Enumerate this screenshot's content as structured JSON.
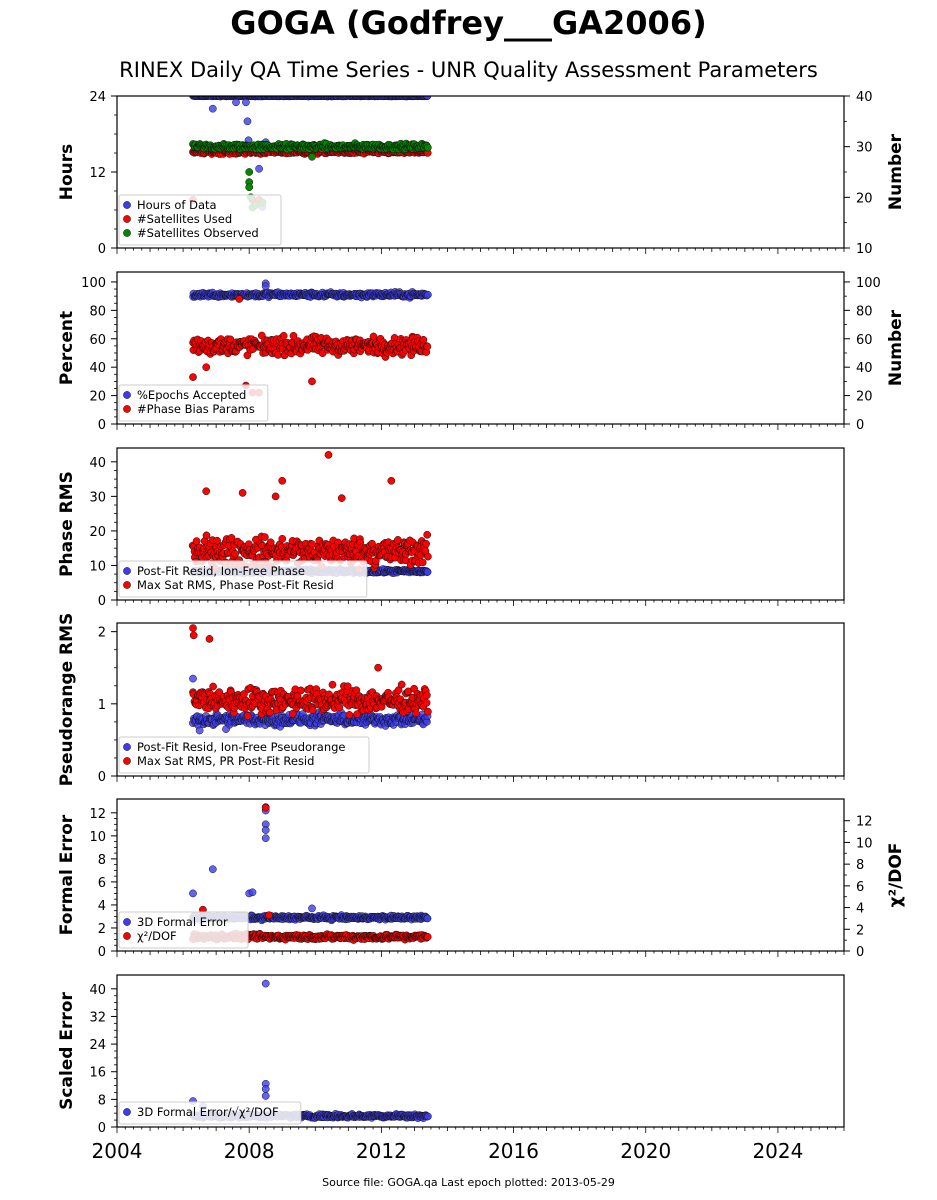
{
  "title": "GOGA (Godfrey___GA2006)",
  "subtitle": "RINEX Daily QA Time Series - UNR Quality Assessment Parameters",
  "footer": "Source file: GOGA.qa Last epoch plotted: 2013-05-29",
  "colors": {
    "blue": "#3c3cf0",
    "red": "#ff0000",
    "green": "#008800"
  },
  "chart_data": [
    {
      "type": "scatter",
      "ylabel": "Hours",
      "ylabel_right": "Number",
      "ylim": [
        0,
        24
      ],
      "ylim_right": [
        10,
        40
      ],
      "yticks": [
        0,
        12,
        24
      ],
      "yticks_right": [
        10,
        20,
        30,
        40
      ],
      "legend": [
        "Hours of Data",
        "#Satellites Used",
        "#Satellites Observed"
      ],
      "series": [
        {
          "name": "Hours of Data",
          "color": "blue",
          "axis": "left",
          "x_range": [
            2006.3,
            2013.4
          ],
          "base": 24.0,
          "spread": 0.1,
          "outliers": [
            [
              2006.9,
              22.0
            ],
            [
              2007.6,
              23.0
            ],
            [
              2007.9,
              23.0
            ],
            [
              2007.95,
              20.0
            ],
            [
              2007.98,
              17.0
            ],
            [
              2008.0,
              16.0
            ],
            [
              2008.2,
              15.0
            ],
            [
              2008.3,
              12.5
            ],
            [
              2008.4,
              6.5
            ],
            [
              2008.5,
              16.7
            ]
          ]
        },
        {
          "name": "#Satellites Used",
          "color": "red",
          "axis": "right",
          "x_range": [
            2006.3,
            2013.4
          ],
          "base": 29.0,
          "spread": 0.6,
          "outliers": [
            [
              2006.3,
              19.5
            ],
            [
              2008.1,
              19.5
            ],
            [
              2008.3,
              19.5
            ],
            [
              2008.4,
              19.0
            ]
          ]
        },
        {
          "name": "#Satellites Observed",
          "color": "green",
          "axis": "right",
          "x_range": [
            2006.3,
            2013.4
          ],
          "base": 30.0,
          "spread": 0.8,
          "outliers": [
            [
              2008.0,
              25.0
            ],
            [
              2008.0,
              23.0
            ],
            [
              2008.0,
              22.0
            ],
            [
              2008.05,
              20.0
            ],
            [
              2008.1,
              18.0
            ],
            [
              2008.2,
              18.5
            ],
            [
              2008.4,
              19.0
            ],
            [
              2009.9,
              28.0
            ]
          ]
        }
      ]
    },
    {
      "type": "scatter",
      "ylabel": "Percent",
      "ylabel_right": "Number",
      "ylim": [
        0,
        107
      ],
      "ylim_right": [
        0,
        107
      ],
      "yticks": [
        0,
        20,
        40,
        60,
        80,
        100
      ],
      "yticks_right": [
        0,
        20,
        40,
        60,
        80,
        100
      ],
      "legend": [
        "%Epochs Accepted",
        "#Phase Bias Params"
      ],
      "series": [
        {
          "name": "%Epochs Accepted",
          "color": "blue",
          "axis": "left",
          "x_range": [
            2006.3,
            2013.4
          ],
          "base": 91.0,
          "spread": 2.5,
          "outliers": [
            [
              2008.5,
              99.0
            ],
            [
              2008.5,
              97.0
            ]
          ]
        },
        {
          "name": "#Phase Bias Params",
          "color": "red",
          "axis": "right",
          "x_range": [
            2006.3,
            2013.4
          ],
          "base": 55.0,
          "spread": 9.0,
          "outliers": [
            [
              2006.3,
              33.0
            ],
            [
              2006.7,
              40.0
            ],
            [
              2007.9,
              27.0
            ],
            [
              2008.1,
              22.0
            ],
            [
              2008.3,
              22.0
            ],
            [
              2009.9,
              30.0
            ],
            [
              2007.7,
              88.0
            ]
          ]
        }
      ]
    },
    {
      "type": "scatter",
      "ylabel": "Phase RMS",
      "ylim": [
        0,
        44
      ],
      "yticks": [
        0,
        10,
        20,
        30,
        40
      ],
      "legend": [
        "Post-Fit Resid, Ion-Free Phase",
        "Max Sat RMS, Phase Post-Fit Resid"
      ],
      "series": [
        {
          "name": "Post-Fit Resid, Ion-Free Phase",
          "color": "blue",
          "axis": "left",
          "x_range": [
            2006.3,
            2013.4
          ],
          "base": 8.3,
          "spread": 0.8,
          "outliers": []
        },
        {
          "name": "Max Sat RMS, Phase Post-Fit Resid",
          "color": "red",
          "axis": "left",
          "x_range": [
            2006.3,
            2013.4
          ],
          "base": 14.0,
          "spread": 6.0,
          "outliers": [
            [
              2010.4,
              42.0
            ],
            [
              2009.0,
              34.5
            ],
            [
              2012.3,
              34.5
            ],
            [
              2006.7,
              31.5
            ],
            [
              2007.8,
              31.0
            ],
            [
              2008.8,
              30.0
            ],
            [
              2010.8,
              29.5
            ]
          ]
        }
      ]
    },
    {
      "type": "scatter",
      "ylabel": "Pseudorange RMS",
      "ylim": [
        0,
        2.12
      ],
      "yticks": [
        0,
        1,
        2
      ],
      "legend": [
        "Post-Fit Resid, Ion-Free Pseudorange",
        "Max Sat RMS, PR Post-Fit Resid"
      ],
      "series": [
        {
          "name": "Post-Fit Resid, Ion-Free Pseudorange",
          "color": "blue",
          "axis": "left",
          "x_range": [
            2006.3,
            2013.4
          ],
          "base": 0.78,
          "spread": 0.12,
          "outliers": [
            [
              2006.3,
              1.35
            ],
            [
              2006.5,
              0.63
            ],
            [
              2007.3,
              0.65
            ]
          ]
        },
        {
          "name": "Max Sat RMS, PR Post-Fit Resid",
          "color": "red",
          "axis": "left",
          "x_range": [
            2006.3,
            2013.4
          ],
          "base": 1.05,
          "spread": 0.25,
          "outliers": [
            [
              2006.3,
              2.05
            ],
            [
              2006.32,
              1.95
            ],
            [
              2006.8,
              1.9
            ],
            [
              2011.9,
              1.5
            ]
          ]
        }
      ]
    },
    {
      "type": "scatter",
      "ylabel": "Formal Error",
      "ylabel_right": "χ²/DOF",
      "ylim": [
        0,
        13.2
      ],
      "ylim_right": [
        0,
        14
      ],
      "yticks": [
        0,
        2,
        4,
        6,
        8,
        10,
        12
      ],
      "yticks_right": [
        0,
        2,
        4,
        6,
        8,
        10,
        12
      ],
      "legend": [
        "3D Formal Error",
        "χ²/DOF"
      ],
      "series": [
        {
          "name": "3D Formal Error",
          "color": "blue",
          "axis": "left",
          "x_range": [
            2006.3,
            2013.4
          ],
          "base": 2.9,
          "spread": 0.25,
          "outliers": [
            [
              2006.3,
              5.0
            ],
            [
              2006.9,
              7.1
            ],
            [
              2008.0,
              5.0
            ],
            [
              2008.1,
              5.1
            ],
            [
              2008.5,
              12.5
            ],
            [
              2008.5,
              12.2
            ],
            [
              2008.5,
              11.0
            ],
            [
              2008.5,
              10.5
            ],
            [
              2008.5,
              9.8
            ],
            [
              2009.9,
              3.7
            ]
          ]
        },
        {
          "name": "χ²/DOF",
          "color": "red",
          "axis": "right",
          "x_range": [
            2006.3,
            2013.4
          ],
          "base": 1.3,
          "spread": 0.35,
          "outliers": [
            [
              2008.5,
              13.2
            ],
            [
              2006.6,
              3.8
            ],
            [
              2008.6,
              3.3
            ]
          ]
        }
      ]
    },
    {
      "type": "scatter",
      "ylabel": "Scaled Error",
      "xlabel": "",
      "ylim": [
        0,
        44
      ],
      "yticks": [
        0,
        8,
        16,
        24,
        32,
        40
      ],
      "legend": [
        "3D Formal Error/√χ²/DOF"
      ],
      "series": [
        {
          "name": "3D Formal Error/√χ²/DOF",
          "color": "blue",
          "axis": "left",
          "x_range": [
            2006.3,
            2013.4
          ],
          "base": 3.2,
          "spread": 0.8,
          "outliers": [
            [
              2008.5,
              41.5
            ],
            [
              2008.5,
              12.5
            ],
            [
              2008.5,
              11.0
            ],
            [
              2008.5,
              9.0
            ],
            [
              2006.3,
              7.5
            ],
            [
              2006.6,
              6.0
            ]
          ]
        }
      ]
    }
  ],
  "x_axis": {
    "xlim": [
      2004.0,
      2026.0
    ],
    "ticks": [
      "2004",
      "2008",
      "2012",
      "2016",
      "2020",
      "2024"
    ],
    "tick_values": [
      2004,
      2008,
      2012,
      2016,
      2020,
      2024
    ]
  }
}
